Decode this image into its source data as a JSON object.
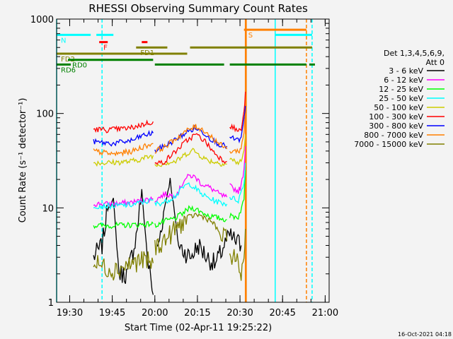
{
  "chart_data": {
    "type": "line",
    "title": "RHESSI Observing Summary Count Rates",
    "xlabel": "Start Time (02-Apr-11 19:25:22)",
    "ylabel": "Count Rate (s⁻¹ detector⁻¹)",
    "x_unit": "minutes after 19:25:22 (UT, 02-Apr-11)",
    "x_range_min": [
      0,
      96
    ],
    "y_scale": "log",
    "ylim": [
      1,
      1000
    ],
    "x_ticks": [
      {
        "label": "19:30",
        "value": 4.6
      },
      {
        "label": "19:45",
        "value": 19.6
      },
      {
        "label": "20:00",
        "value": 34.6
      },
      {
        "label": "20:15",
        "value": 49.6
      },
      {
        "label": "20:30",
        "value": 64.6
      },
      {
        "label": "20:45",
        "value": 79.6
      },
      {
        "label": "21:00",
        "value": 94.6
      }
    ],
    "y_ticks": [
      {
        "label": "1",
        "value": 1
      },
      {
        "label": "10",
        "value": 10
      },
      {
        "label": "100",
        "value": 100
      },
      {
        "label": "1000",
        "value": 1000
      }
    ],
    "legend": {
      "title_lines": [
        "Det 1,3,4,5,6,9,",
        "Att 0"
      ],
      "placement": "right"
    },
    "series": [
      {
        "name": "3 - 6 keV",
        "color": "#000000",
        "segments": [
          [
            [
              13,
              3
            ],
            [
              16,
              4
            ],
            [
              18,
              10
            ],
            [
              20,
              12
            ],
            [
              22,
              2
            ],
            [
              25,
              2
            ],
            [
              28,
              5
            ],
            [
              30,
              15
            ],
            [
              32,
              3
            ],
            [
              34,
              1.2
            ]
          ],
          [
            [
              35.5,
              3.5
            ],
            [
              38,
              10
            ],
            [
              40,
              20
            ],
            [
              43,
              4
            ],
            [
              47,
              3
            ],
            [
              50,
              4
            ],
            [
              53,
              3
            ],
            [
              56,
              2.5
            ],
            [
              59,
              4
            ],
            [
              61,
              5
            ],
            [
              65,
              4
            ]
          ]
        ]
      },
      {
        "name": "6 - 12 keV",
        "color": "#ff00ff",
        "segments": [
          [
            [
              13,
              11
            ],
            [
              20,
              11
            ],
            [
              27,
              11.5
            ],
            [
              30,
              12
            ],
            [
              34,
              12.5
            ]
          ],
          [
            [
              34.6,
              12
            ],
            [
              38,
              14
            ],
            [
              41,
              13.5
            ],
            [
              43,
              15
            ],
            [
              45,
              20
            ],
            [
              47,
              22
            ],
            [
              49,
              21
            ],
            [
              51,
              18
            ],
            [
              53,
              17
            ],
            [
              56,
              15
            ],
            [
              58,
              13.5
            ],
            [
              60,
              13
            ]
          ],
          [
            [
              61,
              17
            ],
            [
              64,
              15
            ],
            [
              65,
              17
            ],
            [
              66,
              26
            ],
            [
              66.5,
              45
            ]
          ]
        ]
      },
      {
        "name": "12 - 25 keV",
        "color": "#00ff00",
        "segments": [
          [
            [
              13,
              6.5
            ],
            [
              20,
              6.5
            ],
            [
              27,
              6.6
            ],
            [
              34,
              6.8
            ]
          ],
          [
            [
              34.6,
              6.5
            ],
            [
              38,
              7.2
            ],
            [
              42,
              7.8
            ],
            [
              45,
              9
            ],
            [
              47,
              10
            ],
            [
              49,
              9.8
            ],
            [
              51,
              9
            ],
            [
              54,
              8.2
            ],
            [
              57,
              7.8
            ],
            [
              60,
              7.5
            ]
          ],
          [
            [
              61,
              8.2
            ],
            [
              64,
              8
            ],
            [
              66,
              12
            ],
            [
              66.5,
              25
            ]
          ]
        ]
      },
      {
        "name": "25 - 50 keV",
        "color": "#00ffff",
        "segments": [
          [
            [
              13,
              10.5
            ],
            [
              20,
              10.5
            ],
            [
              27,
              10.8
            ],
            [
              30,
              11.5
            ],
            [
              34,
              12
            ]
          ],
          [
            [
              34.6,
              11
            ],
            [
              38,
              11.5
            ],
            [
              42,
              13.5
            ],
            [
              45,
              17
            ],
            [
              47,
              18
            ],
            [
              49,
              16
            ],
            [
              51,
              14
            ],
            [
              54,
              12.5
            ],
            [
              57,
              11.5
            ],
            [
              60,
              11
            ]
          ],
          [
            [
              61,
              13
            ],
            [
              64,
              12
            ],
            [
              66,
              18
            ],
            [
              66.5,
              30
            ]
          ]
        ]
      },
      {
        "name": "50 - 100 keV",
        "color": "#cccc00",
        "segments": [
          [
            [
              13,
              30
            ],
            [
              18,
              30
            ],
            [
              26,
              31
            ],
            [
              30,
              33
            ],
            [
              34,
              36
            ]
          ],
          [
            [
              34.6,
              28
            ],
            [
              38,
              30
            ],
            [
              42,
              31
            ],
            [
              46,
              38
            ],
            [
              48,
              41
            ],
            [
              50,
              37
            ],
            [
              53,
              32
            ],
            [
              57,
              30
            ],
            [
              60,
              29
            ]
          ],
          [
            [
              61,
              33
            ],
            [
              64,
              30
            ],
            [
              65,
              31
            ],
            [
              66,
              40
            ],
            [
              66.5,
              60
            ]
          ]
        ]
      },
      {
        "name": "100 - 300 keV",
        "color": "#ff0000",
        "segments": [
          [
            [
              13,
              68
            ],
            [
              18,
              67
            ],
            [
              26,
              70
            ],
            [
              30,
              76
            ],
            [
              34,
              82
            ]
          ],
          [
            [
              34.6,
              29
            ],
            [
              38,
              31
            ],
            [
              42,
              40
            ],
            [
              46,
              52
            ],
            [
              49,
              60
            ],
            [
              52,
              52
            ],
            [
              55,
              40
            ],
            [
              58,
              33
            ],
            [
              60,
              31
            ]
          ],
          [
            [
              61,
              75
            ],
            [
              64,
              65
            ],
            [
              65,
              68
            ],
            [
              66,
              100
            ],
            [
              66.5,
              170
            ]
          ]
        ]
      },
      {
        "name": "300 - 800 keV",
        "color": "#0000ff",
        "segments": [
          [
            [
              13,
              50
            ],
            [
              20,
              48
            ],
            [
              27,
              52
            ],
            [
              30,
              58
            ],
            [
              34,
              62
            ]
          ],
          [
            [
              34.6,
              40
            ],
            [
              38,
              45
            ],
            [
              42,
              53
            ],
            [
              46,
              64
            ],
            [
              49,
              70
            ],
            [
              52,
              62
            ],
            [
              55,
              52
            ],
            [
              58,
              46
            ],
            [
              60,
              45
            ]
          ],
          [
            [
              61,
              55
            ],
            [
              64,
              52
            ],
            [
              65,
              54
            ],
            [
              66,
              85
            ],
            [
              66.5,
              120
            ]
          ]
        ]
      },
      {
        "name": "800 - 7000 keV",
        "color": "#ff8000",
        "segments": [
          [
            [
              13,
              40
            ],
            [
              20,
              37
            ],
            [
              27,
              40
            ],
            [
              30,
              44
            ],
            [
              34,
              48
            ]
          ],
          [
            [
              34.6,
              40
            ],
            [
              38,
              44
            ],
            [
              42,
              54
            ],
            [
              46,
              66
            ],
            [
              49,
              73
            ],
            [
              52,
              66
            ],
            [
              55,
              55
            ],
            [
              58,
              46
            ],
            [
              60,
              42
            ]
          ],
          [
            [
              61,
              40
            ],
            [
              64,
              40
            ],
            [
              65,
              42
            ],
            [
              66,
              65
            ],
            [
              66.5,
              100
            ]
          ]
        ]
      },
      {
        "name": "7000 - 15000 keV",
        "color": "#808000",
        "segments": [
          [
            [
              13,
              2.6
            ],
            [
              20,
              2.2
            ],
            [
              27,
              2.6
            ],
            [
              30,
              2.8
            ],
            [
              34,
              2.6
            ]
          ],
          [
            [
              34.6,
              3.8
            ],
            [
              38,
              4.5
            ],
            [
              42,
              6
            ],
            [
              46,
              7.8
            ],
            [
              49,
              8.5
            ],
            [
              52,
              8
            ],
            [
              55,
              7
            ],
            [
              58,
              5
            ],
            [
              60,
              4.5
            ]
          ],
          [
            [
              61,
              3.5
            ],
            [
              64,
              2.5
            ],
            [
              65,
              2
            ],
            [
              66,
              3
            ],
            [
              66.5,
              6
            ]
          ]
        ]
      }
    ],
    "annotations": [
      {
        "label": "N",
        "color": "#00ffff",
        "bars": [
          [
            0,
            12
          ],
          [
            14,
            20
          ],
          [
            77,
            90
          ]
        ],
        "level": 680
      },
      {
        "label": "S",
        "color": "#ff8000",
        "bars": [
          [
            66,
            88
          ]
        ],
        "level": 770
      },
      {
        "label": "F",
        "color": "#ff0000",
        "bars": [
          [
            15,
            18
          ],
          [
            30,
            32
          ]
        ],
        "level": 570
      },
      {
        "label": "FD1",
        "color": "#808000",
        "bars": [
          [
            28,
            39
          ],
          [
            47,
            90
          ]
        ],
        "level": 500
      },
      {
        "label": "FD2",
        "color": "#808000",
        "bars": [
          [
            0,
            46
          ]
        ],
        "level": 430
      },
      {
        "label": "RD0",
        "color": "#008000",
        "bars": [
          [
            4,
            34
          ]
        ],
        "level": 370
      },
      {
        "label": "RD6",
        "color": "#008000",
        "bars": [
          [
            0,
            5
          ],
          [
            34.6,
            59
          ],
          [
            61,
            88
          ],
          [
            89,
            91
          ]
        ],
        "level": 330
      }
    ],
    "vertical_lines": [
      {
        "value": 0,
        "color": "#00ffff",
        "style": "solid"
      },
      {
        "value": 16,
        "color": "#00ffff",
        "style": "dashed"
      },
      {
        "value": 66.5,
        "color": "#ff8000",
        "style": "solid"
      },
      {
        "value": 66.8,
        "color": "#ff8000",
        "style": "solid"
      },
      {
        "value": 77,
        "color": "#00ffff",
        "style": "solid"
      },
      {
        "value": 88,
        "color": "#ff8000",
        "style": "dashed"
      },
      {
        "value": 90,
        "color": "#00ffff",
        "style": "dashed"
      }
    ]
  },
  "footer": {
    "timestamp": "16-Oct-2021 04:18"
  }
}
